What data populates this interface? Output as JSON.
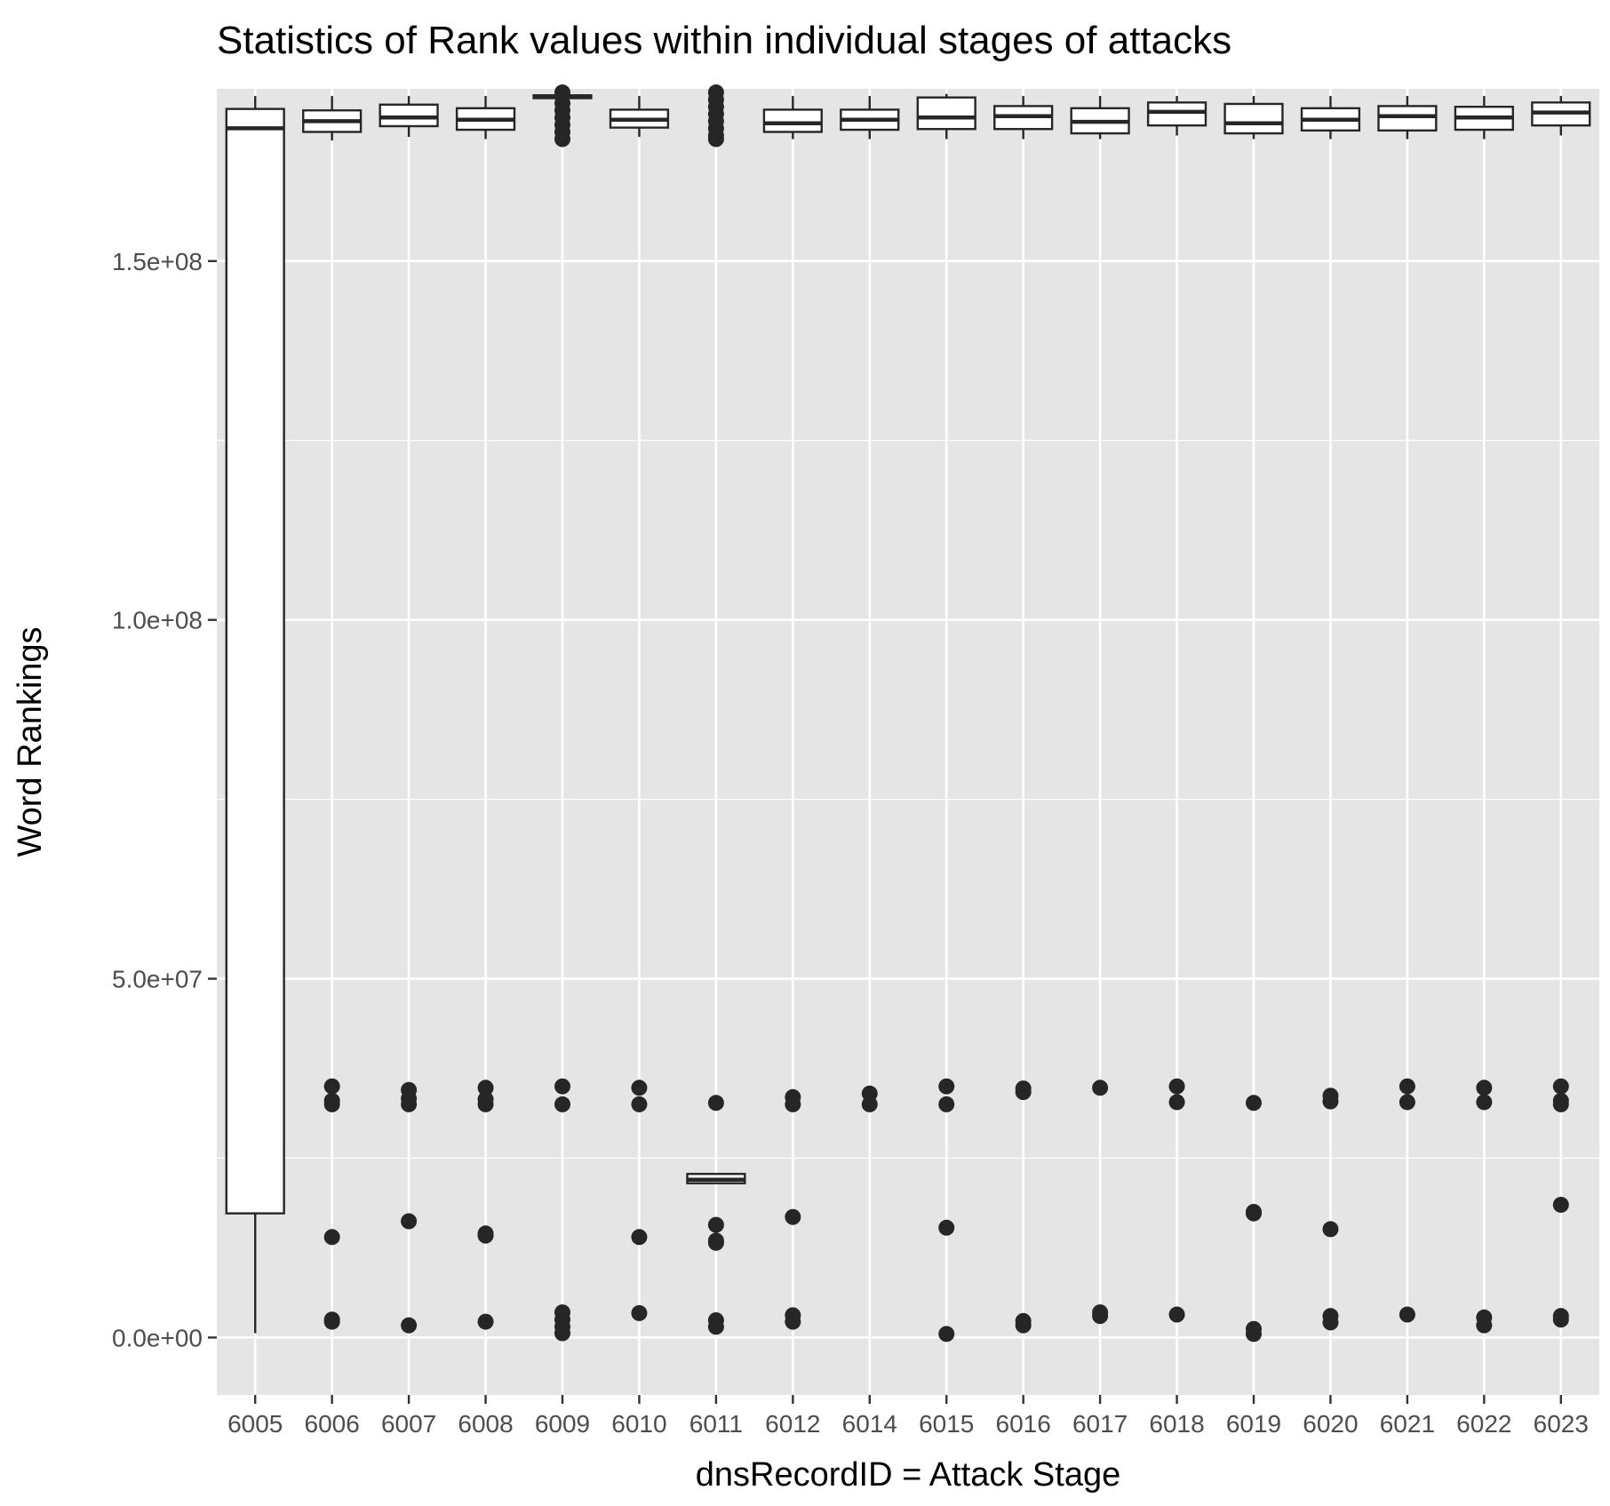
{
  "chart_data": {
    "type": "boxplot",
    "title": "Statistics of Rank values within individual stages of attacks",
    "xlabel": "dnsRecordID = Attack Stage",
    "ylabel": "Word Rankings",
    "ylim": [
      -8000000,
      174000000
    ],
    "y_ticks": [
      {
        "value": 0,
        "label": "0.0e+00"
      },
      {
        "value": 50000000,
        "label": "5.0e+07"
      },
      {
        "value": 100000000,
        "label": "1.0e+08"
      },
      {
        "value": 150000000,
        "label": "1.5e+08"
      }
    ],
    "grid": true,
    "legend": "none",
    "colors": {
      "panel": "#e5e5e5",
      "grid": "#ffffff",
      "box_fill": "#ffffff",
      "box_line": "#262626",
      "point": "#262626",
      "tick_label": "#4d4d4d"
    },
    "categories": [
      "6005",
      "6006",
      "6007",
      "6008",
      "6009",
      "6010",
      "6011",
      "6012",
      "6014",
      "6015",
      "6016",
      "6017",
      "6018",
      "6019",
      "6020",
      "6021",
      "6022",
      "6023"
    ],
    "boxes": [
      {
        "category": "6005",
        "whisker_low": 600000,
        "q1": 17300000,
        "median": 168500000,
        "q3": 171200000,
        "whisker_high": 173000000,
        "outliers": []
      },
      {
        "category": "6006",
        "whisker_low": 166800000,
        "q1": 168000000,
        "median": 169500000,
        "q3": 171000000,
        "whisker_high": 173000000,
        "outliers": [
          35000000,
          33000000,
          32500000,
          14000000,
          2500000,
          2200000
        ]
      },
      {
        "category": "6007",
        "whisker_low": 167300000,
        "q1": 168800000,
        "median": 170000000,
        "q3": 171800000,
        "whisker_high": 173000000,
        "outliers": [
          34500000,
          33300000,
          32500000,
          16200000,
          1700000
        ]
      },
      {
        "category": "6008",
        "whisker_low": 167000000,
        "q1": 168300000,
        "median": 169700000,
        "q3": 171300000,
        "whisker_high": 173000000,
        "outliers": [
          34800000,
          33200000,
          32500000,
          14500000,
          14200000,
          2200000
        ]
      },
      {
        "category": "6009",
        "whisker_low": 172500000,
        "q1": 172700000,
        "median": 172900000,
        "q3": 173100000,
        "whisker_high": 173300000,
        "outliers": [
          173500000,
          172000000,
          171000000,
          170000000,
          169000000,
          168000000,
          167000000,
          35000000,
          32500000,
          3500000,
          2500000,
          1500000,
          600000
        ]
      },
      {
        "category": "6010",
        "whisker_low": 167300000,
        "q1": 168600000,
        "median": 169700000,
        "q3": 171100000,
        "whisker_high": 173000000,
        "outliers": [
          34800000,
          32500000,
          14000000,
          3400000
        ]
      },
      {
        "category": "6011",
        "whisker_low": 21500000,
        "q1": 21500000,
        "median": 22000000,
        "q3": 22800000,
        "whisker_high": 22800000,
        "outliers": [
          173500000,
          172500000,
          171500000,
          170500000,
          169500000,
          168500000,
          167500000,
          167000000,
          32700000,
          15700000,
          13500000,
          13200000,
          2400000,
          1500000
        ]
      },
      {
        "category": "6012",
        "whisker_low": 167000000,
        "q1": 168000000,
        "median": 169200000,
        "q3": 171100000,
        "whisker_high": 173000000,
        "outliers": [
          33500000,
          32500000,
          16800000,
          3100000,
          2200000
        ]
      },
      {
        "category": "6014",
        "whisker_low": 167000000,
        "q1": 168300000,
        "median": 169700000,
        "q3": 171100000,
        "whisker_high": 173000000,
        "outliers": [
          34000000,
          32500000
        ]
      },
      {
        "category": "6015",
        "whisker_low": 167000000,
        "q1": 168400000,
        "median": 170000000,
        "q3": 172800000,
        "whisker_high": 173300000,
        "outliers": [
          35000000,
          32500000,
          15300000,
          500000
        ]
      },
      {
        "category": "6016",
        "whisker_low": 167000000,
        "q1": 168400000,
        "median": 170200000,
        "q3": 171600000,
        "whisker_high": 173000000,
        "outliers": [
          34700000,
          34200000,
          2300000,
          1700000
        ]
      },
      {
        "category": "6017",
        "whisker_low": 167000000,
        "q1": 167800000,
        "median": 169400000,
        "q3": 171300000,
        "whisker_high": 173000000,
        "outliers": [
          34800000,
          3500000,
          3000000
        ]
      },
      {
        "category": "6018",
        "whisker_low": 167500000,
        "q1": 168900000,
        "median": 170800000,
        "q3": 172100000,
        "whisker_high": 173000000,
        "outliers": [
          35000000,
          32800000,
          3200000
        ]
      },
      {
        "category": "6019",
        "whisker_low": 167000000,
        "q1": 167800000,
        "median": 169200000,
        "q3": 171900000,
        "whisker_high": 173000000,
        "outliers": [
          32700000,
          17500000,
          17300000,
          1200000,
          500000
        ]
      },
      {
        "category": "6020",
        "whisker_low": 167000000,
        "q1": 168200000,
        "median": 169700000,
        "q3": 171300000,
        "whisker_high": 173000000,
        "outliers": [
          33700000,
          32900000,
          15100000,
          3000000,
          2100000
        ]
      },
      {
        "category": "6021",
        "whisker_low": 167000000,
        "q1": 168200000,
        "median": 170200000,
        "q3": 171600000,
        "whisker_high": 173000000,
        "outliers": [
          35000000,
          32800000,
          3200000
        ]
      },
      {
        "category": "6022",
        "whisker_low": 167000000,
        "q1": 168300000,
        "median": 170000000,
        "q3": 171500000,
        "whisker_high": 173000000,
        "outliers": [
          34800000,
          32800000,
          2800000,
          1700000
        ]
      },
      {
        "category": "6023",
        "whisker_low": 167500000,
        "q1": 168900000,
        "median": 170700000,
        "q3": 172100000,
        "whisker_high": 173000000,
        "outliers": [
          35000000,
          33000000,
          32500000,
          18500000,
          3000000,
          2500000
        ]
      }
    ]
  }
}
